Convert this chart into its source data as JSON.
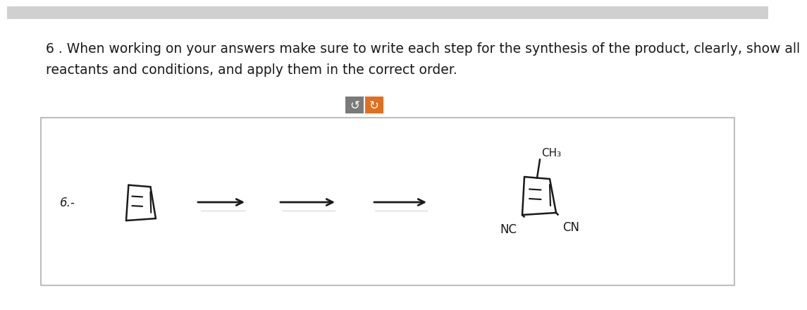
{
  "background_color": "#e8e8e8",
  "page_bg": "#ffffff",
  "title_line1": "6 . When working on your answers make sure to write each step for the synthesis of the product, clearly, show all",
  "title_line2": "reactants and conditions, and apply them in the correct order.",
  "title_fontsize": 13.5,
  "label_6": "6.-",
  "label_NC": "NC",
  "label_CN": "CN",
  "label_CH3": "CH₃",
  "arrow_color": "#1a1a1a",
  "text_color": "#1a1a1a",
  "undo_btn_color": "#7a7a7a",
  "redo_btn_color": "#e07020",
  "btn_text_color": "#ffffff",
  "draw_box_edge": "#b0b0b0",
  "molecule_color": "#1a1a1a"
}
